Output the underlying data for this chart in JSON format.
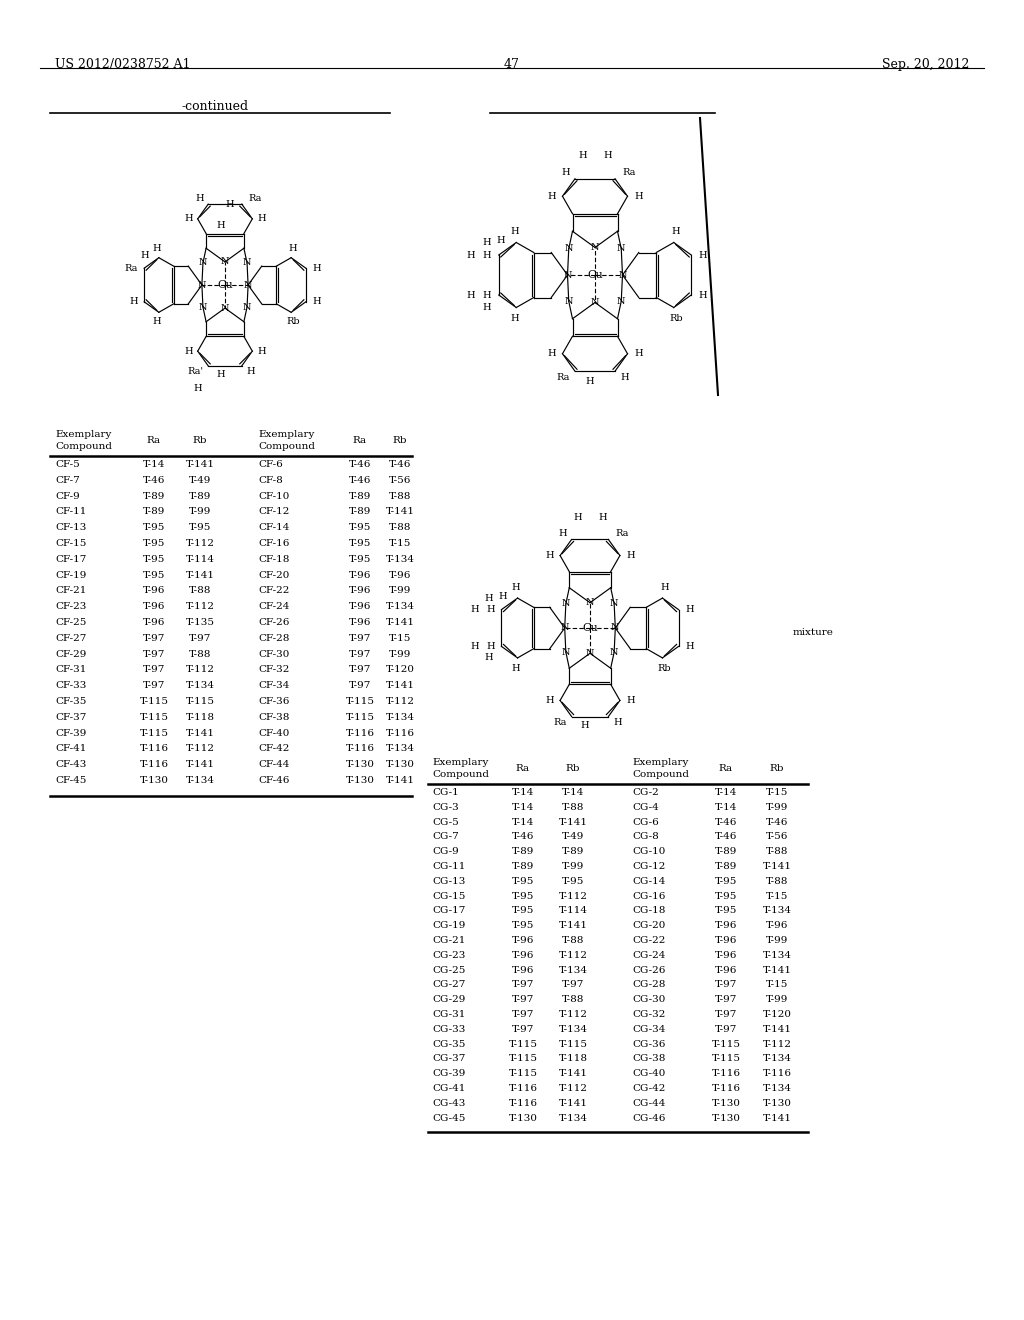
{
  "header_left": "US 2012/0238752 A1",
  "header_right": "Sep. 20, 2012",
  "page_number": "47",
  "continued_label": "-continued",
  "cf_rows": [
    [
      "CF-5",
      "T-14",
      "T-141",
      "CF-6",
      "T-46",
      "T-46"
    ],
    [
      "CF-7",
      "T-46",
      "T-49",
      "CF-8",
      "T-46",
      "T-56"
    ],
    [
      "CF-9",
      "T-89",
      "T-89",
      "CF-10",
      "T-89",
      "T-88"
    ],
    [
      "CF-11",
      "T-89",
      "T-99",
      "CF-12",
      "T-89",
      "T-141"
    ],
    [
      "CF-13",
      "T-95",
      "T-95",
      "CF-14",
      "T-95",
      "T-88"
    ],
    [
      "CF-15",
      "T-95",
      "T-112",
      "CF-16",
      "T-95",
      "T-15"
    ],
    [
      "CF-17",
      "T-95",
      "T-114",
      "CF-18",
      "T-95",
      "T-134"
    ],
    [
      "CF-19",
      "T-95",
      "T-141",
      "CF-20",
      "T-96",
      "T-96"
    ],
    [
      "CF-21",
      "T-96",
      "T-88",
      "CF-22",
      "T-96",
      "T-99"
    ],
    [
      "CF-23",
      "T-96",
      "T-112",
      "CF-24",
      "T-96",
      "T-134"
    ],
    [
      "CF-25",
      "T-96",
      "T-135",
      "CF-26",
      "T-96",
      "T-141"
    ],
    [
      "CF-27",
      "T-97",
      "T-97",
      "CF-28",
      "T-97",
      "T-15"
    ],
    [
      "CF-29",
      "T-97",
      "T-88",
      "CF-30",
      "T-97",
      "T-99"
    ],
    [
      "CF-31",
      "T-97",
      "T-112",
      "CF-32",
      "T-97",
      "T-120"
    ],
    [
      "CF-33",
      "T-97",
      "T-134",
      "CF-34",
      "T-97",
      "T-141"
    ],
    [
      "CF-35",
      "T-115",
      "T-115",
      "CF-36",
      "T-115",
      "T-112"
    ],
    [
      "CF-37",
      "T-115",
      "T-118",
      "CF-38",
      "T-115",
      "T-134"
    ],
    [
      "CF-39",
      "T-115",
      "T-141",
      "CF-40",
      "T-116",
      "T-116"
    ],
    [
      "CF-41",
      "T-116",
      "T-112",
      "CF-42",
      "T-116",
      "T-134"
    ],
    [
      "CF-43",
      "T-116",
      "T-141",
      "CF-44",
      "T-130",
      "T-130"
    ],
    [
      "CF-45",
      "T-130",
      "T-134",
      "CF-46",
      "T-130",
      "T-141"
    ]
  ],
  "cg_rows": [
    [
      "CG-1",
      "T-14",
      "T-14",
      "CG-2",
      "T-14",
      "T-15"
    ],
    [
      "CG-3",
      "T-14",
      "T-88",
      "CG-4",
      "T-14",
      "T-99"
    ],
    [
      "CG-5",
      "T-14",
      "T-141",
      "CG-6",
      "T-46",
      "T-46"
    ],
    [
      "CG-7",
      "T-46",
      "T-49",
      "CG-8",
      "T-46",
      "T-56"
    ],
    [
      "CG-9",
      "T-89",
      "T-89",
      "CG-10",
      "T-89",
      "T-88"
    ],
    [
      "CG-11",
      "T-89",
      "T-99",
      "CG-12",
      "T-89",
      "T-141"
    ],
    [
      "CG-13",
      "T-95",
      "T-95",
      "CG-14",
      "T-95",
      "T-88"
    ],
    [
      "CG-15",
      "T-95",
      "T-112",
      "CG-16",
      "T-95",
      "T-15"
    ],
    [
      "CG-17",
      "T-95",
      "T-114",
      "CG-18",
      "T-95",
      "T-134"
    ],
    [
      "CG-19",
      "T-95",
      "T-141",
      "CG-20",
      "T-96",
      "T-96"
    ],
    [
      "CG-21",
      "T-96",
      "T-88",
      "CG-22",
      "T-96",
      "T-99"
    ],
    [
      "CG-23",
      "T-96",
      "T-112",
      "CG-24",
      "T-96",
      "T-134"
    ],
    [
      "CG-25",
      "T-96",
      "T-134",
      "CG-26",
      "T-96",
      "T-141"
    ],
    [
      "CG-27",
      "T-97",
      "T-97",
      "CG-28",
      "T-97",
      "T-15"
    ],
    [
      "CG-29",
      "T-97",
      "T-88",
      "CG-30",
      "T-97",
      "T-99"
    ],
    [
      "CG-31",
      "T-97",
      "T-112",
      "CG-32",
      "T-97",
      "T-120"
    ],
    [
      "CG-33",
      "T-97",
      "T-134",
      "CG-34",
      "T-97",
      "T-141"
    ],
    [
      "CG-35",
      "T-115",
      "T-115",
      "CG-36",
      "T-115",
      "T-112"
    ],
    [
      "CG-37",
      "T-115",
      "T-118",
      "CG-38",
      "T-115",
      "T-134"
    ],
    [
      "CG-39",
      "T-115",
      "T-141",
      "CG-40",
      "T-116",
      "T-116"
    ],
    [
      "CG-41",
      "T-116",
      "T-112",
      "CG-42",
      "T-116",
      "T-134"
    ],
    [
      "CG-43",
      "T-116",
      "T-141",
      "CG-44",
      "T-130",
      "T-130"
    ],
    [
      "CG-45",
      "T-130",
      "T-134",
      "CG-46",
      "T-130",
      "T-141"
    ]
  ]
}
